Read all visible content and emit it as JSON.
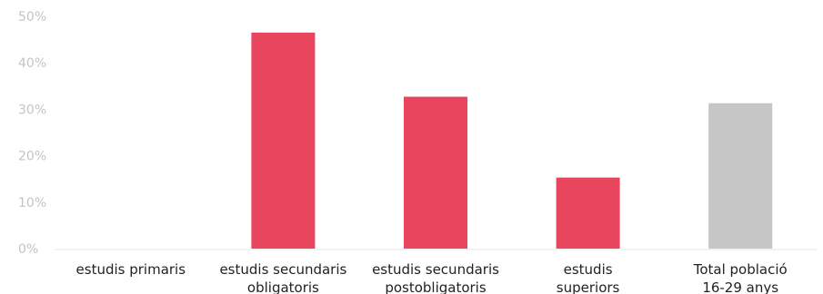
{
  "chart_data": {
    "type": "bar",
    "categories": [
      [
        "estudis primaris"
      ],
      [
        "estudis secundaris",
        "obligatoris"
      ],
      [
        "estudis secundaris",
        "postobligatoris"
      ],
      [
        "estudis",
        "superiors"
      ],
      [
        "Total població",
        "16-29 anys"
      ]
    ],
    "values": [
      0,
      46.5,
      32.7,
      15.3,
      31.3
    ],
    "colors": [
      "#e8455f",
      "#e8455f",
      "#e8455f",
      "#e8455f",
      "#c6c6c6"
    ],
    "ylim": [
      0,
      50
    ],
    "yticks": [
      "0%",
      "10%",
      "20%",
      "30%",
      "40%",
      "50%"
    ],
    "ytick_values": [
      0,
      10,
      20,
      30,
      40,
      50
    ],
    "grid": false,
    "legend": false
  }
}
